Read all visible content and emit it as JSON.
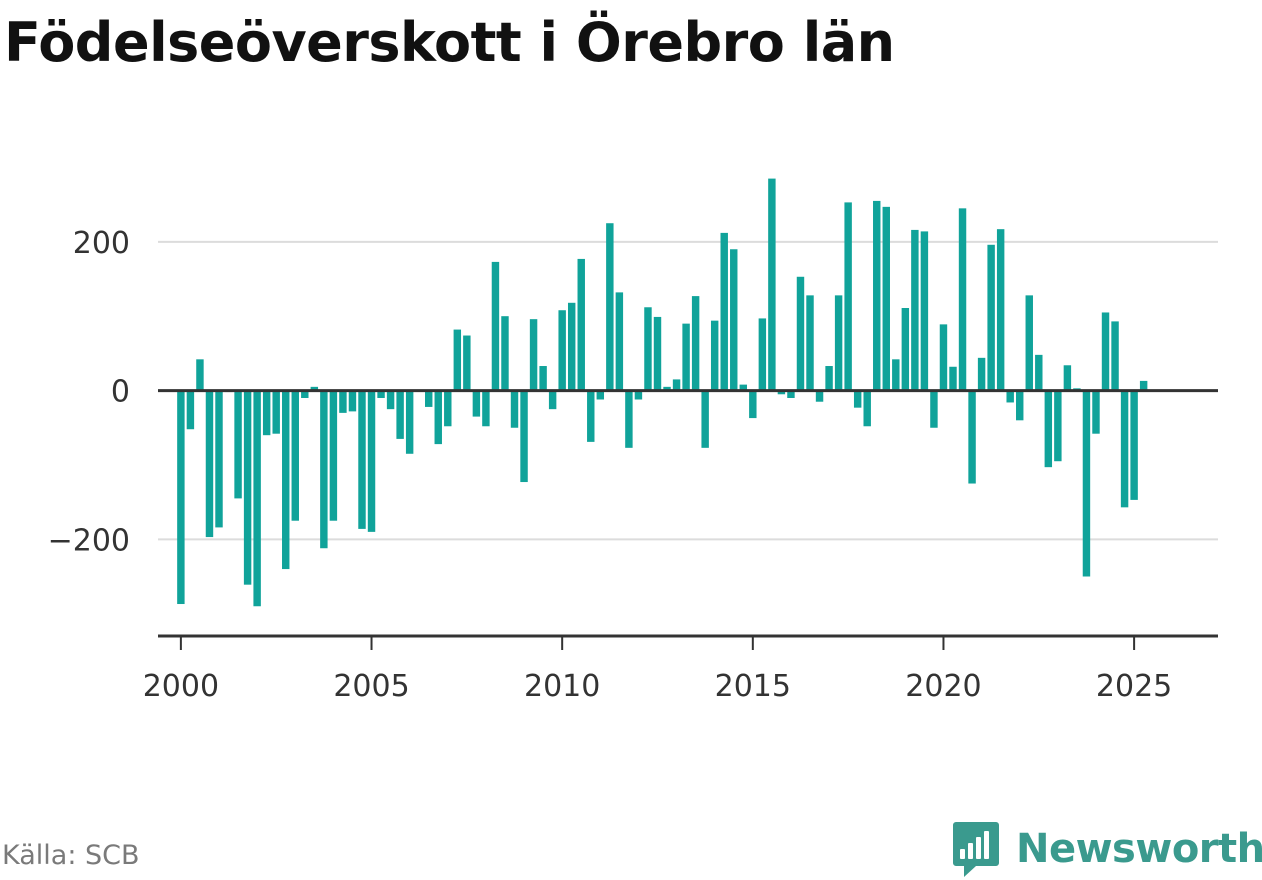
{
  "title": "Födelseöverskott i Örebro län",
  "source": "Källa: SCB",
  "brand": {
    "name": "Newsworthy",
    "icon": "newsworthy-logo-icon",
    "color": "#3a9a8e"
  },
  "chart_data": {
    "type": "bar",
    "bar_color": "#10a39a",
    "xlim": [
      1999.4,
      2027.2
    ],
    "ylim": [
      -330,
      310
    ],
    "yticks": [
      -200,
      0,
      200
    ],
    "ytick_labels": [
      "−200",
      "0",
      "200"
    ],
    "xticks": [
      2000,
      2005,
      2010,
      2015,
      2020,
      2025
    ],
    "xtick_labels": [
      "2000",
      "2005",
      "2010",
      "2015",
      "2020",
      "2025"
    ],
    "grid": true,
    "xlabel": "",
    "ylabel": "",
    "x": [
      2000.0,
      2000.25,
      2000.5,
      2000.75,
      2001.0,
      2001.25,
      2001.5,
      2001.75,
      2002.0,
      2002.25,
      2002.5,
      2002.75,
      2003.0,
      2003.25,
      2003.5,
      2003.75,
      2004.0,
      2004.25,
      2004.5,
      2004.75,
      2005.0,
      2005.25,
      2005.5,
      2005.75,
      2006.0,
      2006.25,
      2006.5,
      2006.75,
      2007.0,
      2007.25,
      2007.5,
      2007.75,
      2008.0,
      2008.25,
      2008.5,
      2008.75,
      2009.0,
      2009.25,
      2009.5,
      2009.75,
      2010.0,
      2010.25,
      2010.5,
      2010.75,
      2011.0,
      2011.25,
      2011.5,
      2011.75,
      2012.0,
      2012.25,
      2012.5,
      2012.75,
      2013.0,
      2013.25,
      2013.5,
      2013.75,
      2014.0,
      2014.25,
      2014.5,
      2014.75,
      2015.0,
      2015.25,
      2015.5,
      2015.75,
      2016.0,
      2016.25,
      2016.5,
      2016.75,
      2017.0,
      2017.25,
      2017.5,
      2017.75,
      2018.0,
      2018.25,
      2018.5,
      2018.75,
      2019.0,
      2019.25,
      2019.5,
      2019.75,
      2020.0,
      2020.25,
      2020.5,
      2020.75,
      2021.0,
      2021.25,
      2021.5,
      2021.75,
      2022.0,
      2022.25,
      2022.5,
      2022.75,
      2023.0,
      2023.25,
      2023.5,
      2023.75,
      2024.0,
      2024.25,
      2024.5,
      2024.75,
      2025.0,
      2025.25
    ],
    "values": [
      -287,
      -52,
      42,
      -197,
      -184,
      -2,
      -145,
      -261,
      -290,
      -60,
      -58,
      -240,
      -175,
      -10,
      5,
      -212,
      -175,
      -30,
      -28,
      -186,
      -190,
      -10,
      -25,
      -65,
      -85,
      0,
      -22,
      -72,
      -48,
      82,
      74,
      -35,
      -48,
      173,
      100,
      -50,
      -123,
      96,
      33,
      -25,
      108,
      118,
      177,
      -69,
      -12,
      225,
      132,
      -77,
      -12,
      112,
      99,
      5,
      15,
      90,
      127,
      -77,
      94,
      212,
      190,
      8,
      -37,
      97,
      285,
      -5,
      -10,
      153,
      128,
      -15,
      33,
      128,
      253,
      -23,
      -48,
      255,
      247,
      42,
      111,
      216,
      214,
      -50,
      89,
      32,
      245,
      -125,
      44,
      196,
      217,
      -16,
      -40,
      128,
      48,
      -103,
      -95,
      34,
      3,
      -250,
      -58,
      105,
      93,
      -157,
      -147,
      13
    ]
  }
}
